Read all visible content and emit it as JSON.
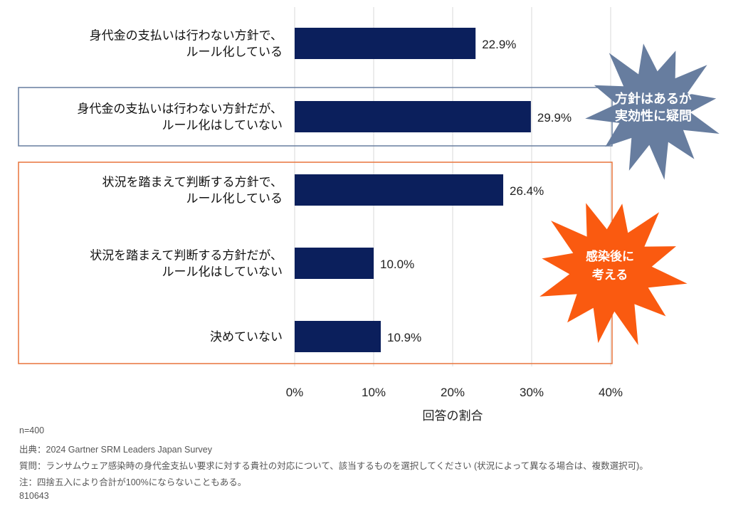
{
  "chart_data": {
    "type": "bar",
    "orientation": "horizontal",
    "categories": [
      [
        "身代金の支払いは行わない方針で、",
        "ルール化している"
      ],
      [
        "身代金の支払いは行わない方針だが、",
        "ルール化はしていない"
      ],
      [
        "状況を踏まえて判断する方針で、",
        "ルール化している"
      ],
      [
        "状況を踏まえて判断する方針だが、",
        "ルール化はしていない"
      ],
      [
        "決めていない"
      ]
    ],
    "values": [
      22.9,
      29.9,
      26.4,
      10.0,
      10.9
    ],
    "value_labels": [
      "22.9%",
      "29.9%",
      "26.4%",
      "10.0%",
      "10.9%"
    ],
    "xlabel": "回答の割合",
    "xlim": [
      0,
      40
    ],
    "xticks": [
      "0%",
      "10%",
      "20%",
      "30%",
      "40%"
    ],
    "grid": true,
    "bar_color": "#0b1f5c",
    "annotations": [
      {
        "lines": [
          "方針はあるが",
          "実効性に疑問"
        ],
        "color": "#677d9f",
        "highlights": [
          1
        ]
      },
      {
        "lines": [
          "感染後に",
          "考える"
        ],
        "color": "#fa5a10",
        "highlights": [
          2,
          3,
          4
        ]
      }
    ]
  },
  "footer": [
    "n=400",
    "出典：2024 Gartner SRM Leaders Japan Survey",
    "質問：ランサムウェア感染時の身代金支払い要求に対する貴社の対応について、該当するものを選択してください (状況によって異なる場合は、複数選択可)。",
    "注：四捨五入により合計が100%にならないこともある。",
    "810643"
  ]
}
